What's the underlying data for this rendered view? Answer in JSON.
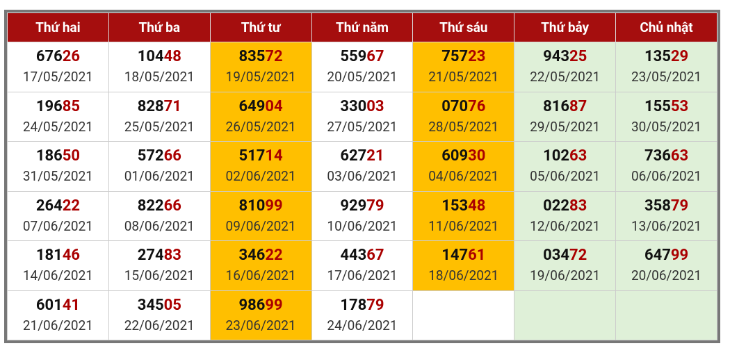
{
  "table": {
    "header": [
      "Thứ hai",
      "Thứ ba",
      "Thứ tư",
      "Thứ năm",
      "Thứ sáu",
      "Thứ bảy",
      "Chủ nhật"
    ],
    "rows": [
      [
        {
          "head": "676",
          "tail": "26",
          "date": "17/05/2021"
        },
        {
          "head": "104",
          "tail": "48",
          "date": "18/05/2021"
        },
        {
          "head": "835",
          "tail": "72",
          "date": "19/05/2021"
        },
        {
          "head": "559",
          "tail": "67",
          "date": "20/05/2021"
        },
        {
          "head": "757",
          "tail": "23",
          "date": "21/05/2021"
        },
        {
          "head": "943",
          "tail": "25",
          "date": "22/05/2021"
        },
        {
          "head": "135",
          "tail": "29",
          "date": "23/05/2021"
        }
      ],
      [
        {
          "head": "196",
          "tail": "85",
          "date": "24/05/2021"
        },
        {
          "head": "828",
          "tail": "71",
          "date": "25/05/2021"
        },
        {
          "head": "649",
          "tail": "04",
          "date": "26/05/2021"
        },
        {
          "head": "330",
          "tail": "03",
          "date": "27/05/2021"
        },
        {
          "head": "070",
          "tail": "76",
          "date": "28/05/2021"
        },
        {
          "head": "816",
          "tail": "87",
          "date": "29/05/2021"
        },
        {
          "head": "155",
          "tail": "53",
          "date": "30/05/2021"
        }
      ],
      [
        {
          "head": "186",
          "tail": "50",
          "date": "31/05/2021"
        },
        {
          "head": "572",
          "tail": "66",
          "date": "01/06/2021"
        },
        {
          "head": "517",
          "tail": "14",
          "date": "02/06/2021"
        },
        {
          "head": "627",
          "tail": "21",
          "date": "03/06/2021"
        },
        {
          "head": "609",
          "tail": "30",
          "date": "04/06/2021"
        },
        {
          "head": "102",
          "tail": "63",
          "date": "05/06/2021"
        },
        {
          "head": "736",
          "tail": "63",
          "date": "06/06/2021"
        }
      ],
      [
        {
          "head": "264",
          "tail": "22",
          "date": "07/06/2021"
        },
        {
          "head": "822",
          "tail": "66",
          "date": "08/06/2021"
        },
        {
          "head": "810",
          "tail": "99",
          "date": "09/06/2021"
        },
        {
          "head": "929",
          "tail": "79",
          "date": "10/06/2021"
        },
        {
          "head": "153",
          "tail": "48",
          "date": "11/06/2021"
        },
        {
          "head": "022",
          "tail": "83",
          "date": "12/06/2021"
        },
        {
          "head": "358",
          "tail": "79",
          "date": "13/06/2021"
        }
      ],
      [
        {
          "head": "181",
          "tail": "46",
          "date": "14/06/2021"
        },
        {
          "head": "274",
          "tail": "83",
          "date": "15/06/2021"
        },
        {
          "head": "346",
          "tail": "22",
          "date": "16/06/2021"
        },
        {
          "head": "443",
          "tail": "67",
          "date": "17/06/2021"
        },
        {
          "head": "147",
          "tail": "61",
          "date": "18/06/2021"
        },
        {
          "head": "034",
          "tail": "72",
          "date": "19/06/2021"
        },
        {
          "head": "647",
          "tail": "99",
          "date": "20/06/2021"
        }
      ],
      [
        {
          "head": "601",
          "tail": "41",
          "date": "21/06/2021"
        },
        {
          "head": "345",
          "tail": "05",
          "date": "22/06/2021"
        },
        {
          "head": "986",
          "tail": "99",
          "date": "23/06/2021"
        },
        {
          "head": "178",
          "tail": "79",
          "date": "24/06/2021"
        }
      ]
    ]
  }
}
